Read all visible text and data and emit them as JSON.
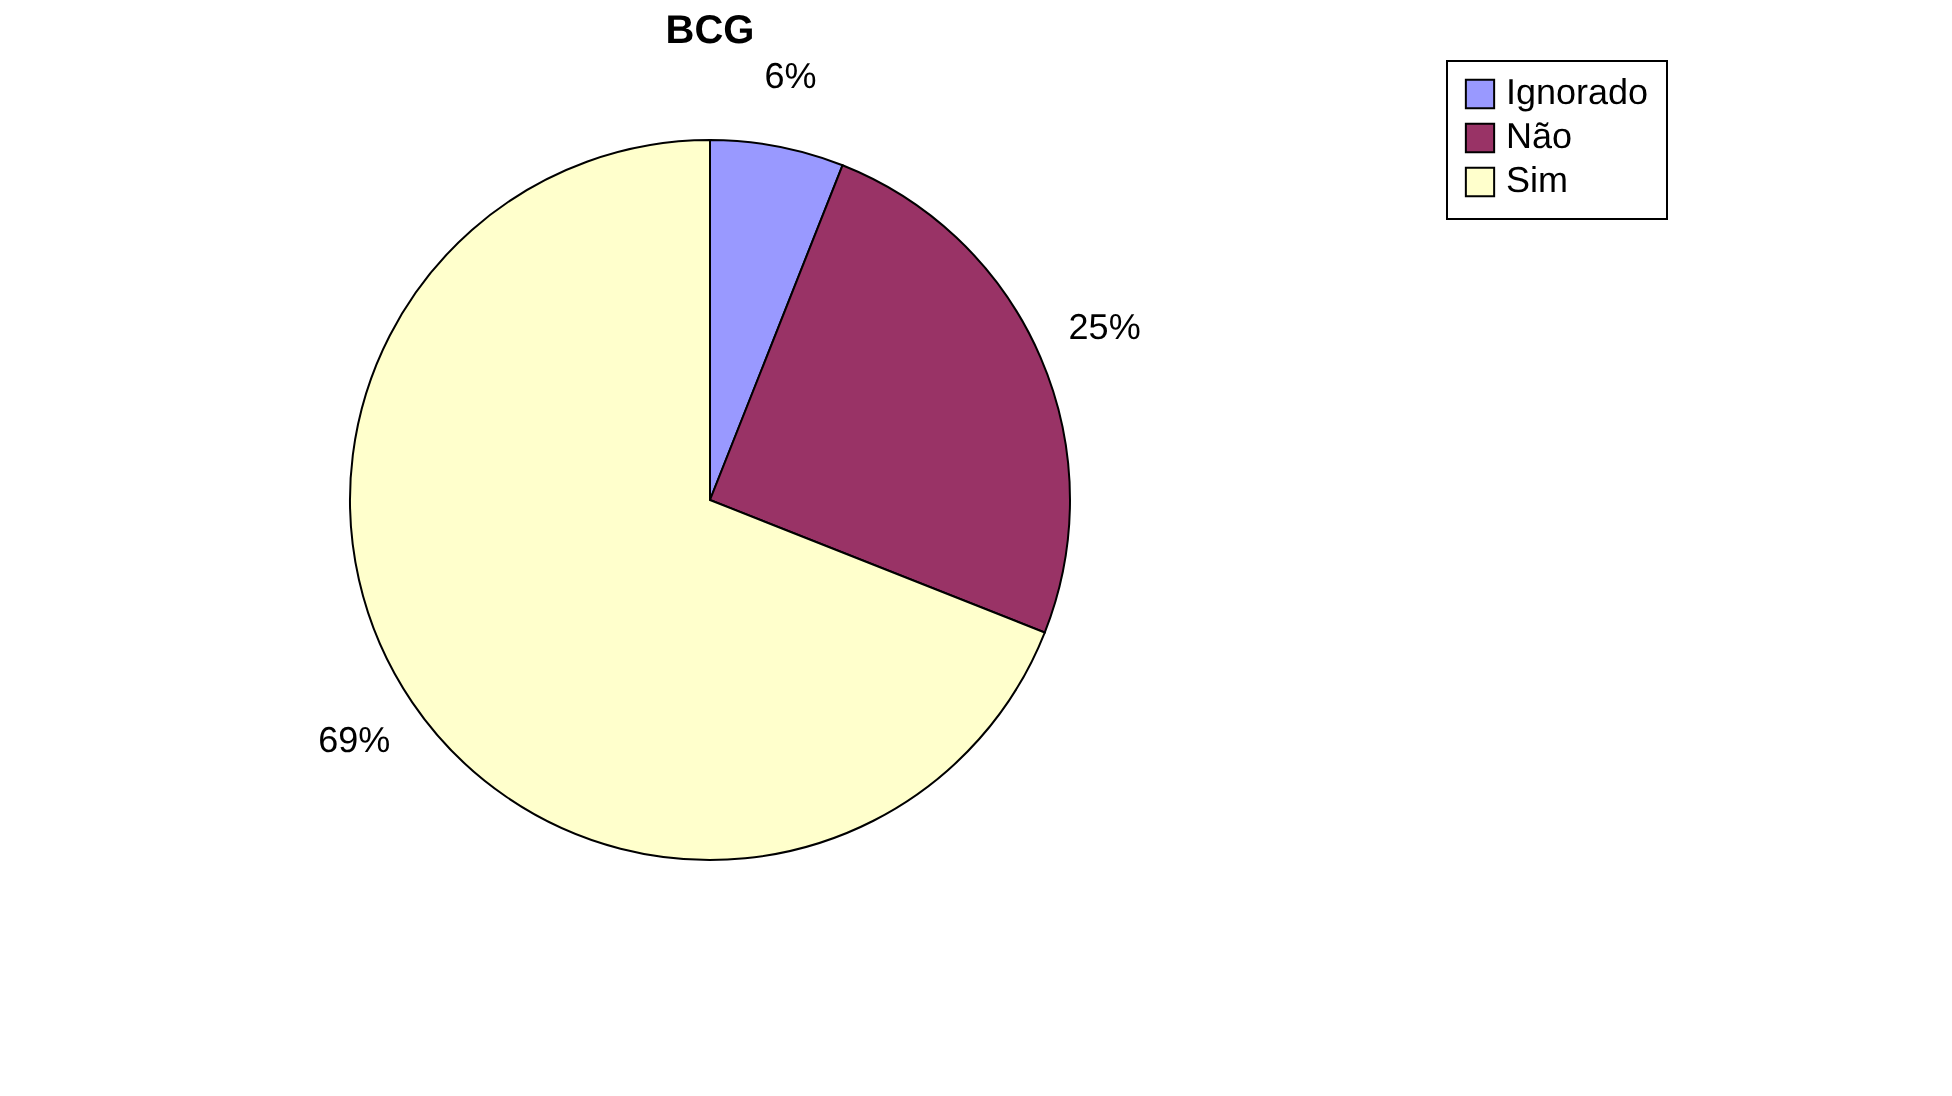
{
  "chart_data": {
    "type": "pie",
    "title": "BCG",
    "categories": [
      "Ignorado",
      "Não",
      "Sim"
    ],
    "values": [
      6,
      25,
      69
    ],
    "colors": [
      "#9999ff",
      "#993366",
      "#ffffcc"
    ],
    "value_labels": [
      "6%",
      "25%",
      "69%"
    ],
    "legend": "right"
  }
}
